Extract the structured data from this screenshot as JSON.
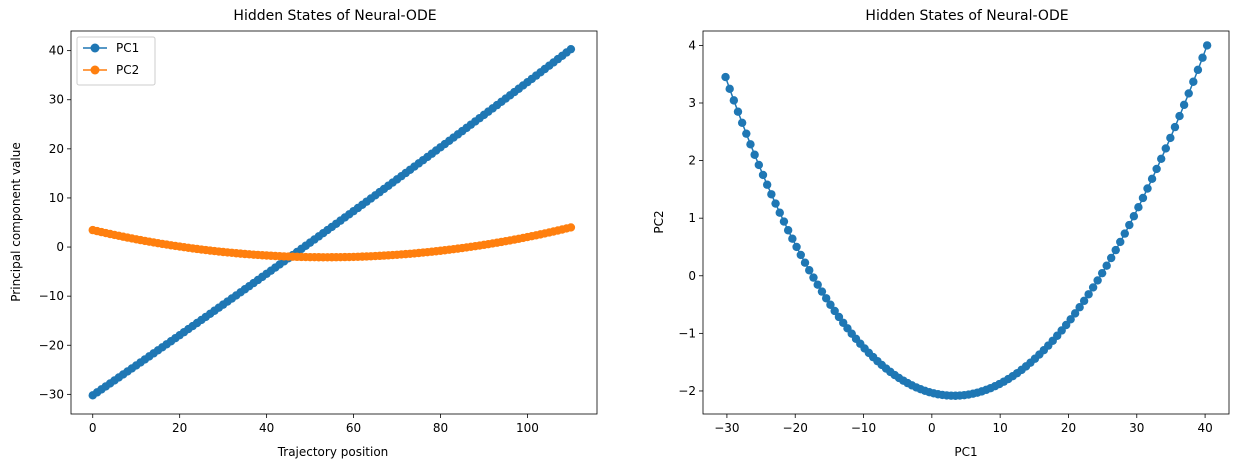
{
  "chart_data": [
    {
      "type": "line",
      "title": "Hidden States of Neural-ODE",
      "xlabel": "Trajectory position",
      "ylabel": "Principal component value",
      "xlim": [
        -5,
        116
      ],
      "ylim": [
        -34,
        44
      ],
      "xticks": [
        0,
        20,
        40,
        60,
        80,
        100
      ],
      "yticks": [
        -30,
        -20,
        -10,
        0,
        10,
        20,
        30,
        40
      ],
      "grid": false,
      "legend": "upper-left",
      "x_range": [
        0,
        110
      ],
      "x_count": 111,
      "series": [
        {
          "name": "PC1",
          "color": "#1f77b4",
          "formula": "quadratic",
          "y_start": -30.2,
          "y_mid": 4.1,
          "y_end": 40.3
        },
        {
          "name": "PC2",
          "color": "#ff7f0e",
          "formula": "quadratic",
          "y_start": 3.45,
          "y_mid": -2.08,
          "y_end": 4.0
        }
      ]
    },
    {
      "type": "scatter",
      "title": "Hidden States of Neural-ODE",
      "xlabel": "PC1",
      "ylabel": "PC2",
      "xlim": [
        -33.5,
        43.5
      ],
      "ylim": [
        -2.4,
        4.25
      ],
      "xticks": [
        -30,
        -20,
        -10,
        0,
        10,
        20,
        30,
        40
      ],
      "yticks": [
        -2,
        -1,
        0,
        1,
        2,
        3,
        4
      ],
      "grid": false,
      "color": "#1f77b4",
      "note_series": "PC2 plotted against PC1 from left panel"
    }
  ],
  "tick_labels": {
    "left_x": [
      "0",
      "20",
      "40",
      "60",
      "80",
      "100"
    ],
    "left_y": [
      "−30",
      "−20",
      "−10",
      "0",
      "10",
      "20",
      "30",
      "40"
    ],
    "right_x": [
      "−30",
      "−20",
      "−10",
      "0",
      "10",
      "20",
      "30",
      "40"
    ],
    "right_y": [
      "−2",
      "−1",
      "0",
      "1",
      "2",
      "3",
      "4"
    ]
  }
}
